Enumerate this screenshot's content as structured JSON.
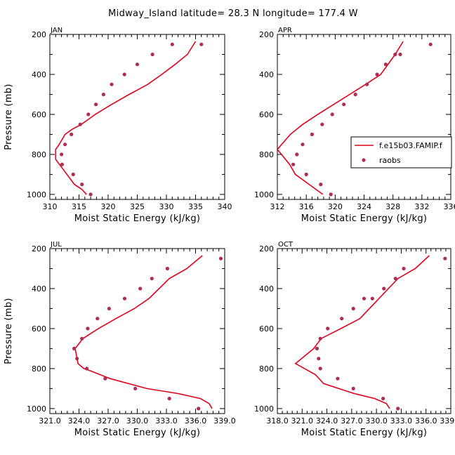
{
  "figure": {
    "title": "Midway_Island   latitude= 28.3 N longitude= 177.4 W",
    "colors": {
      "model": "#e3001b",
      "observations": "#b02c55"
    }
  },
  "chart_data": [
    {
      "type": "line",
      "panel": "JAN",
      "title": "JAN",
      "xlabel": "Moist Static Energy (kJ/kg)",
      "ylabel": "Pressure (mb)",
      "xlim": [
        310,
        340
      ],
      "ylim": [
        1025,
        200
      ],
      "y_inverted": true,
      "xticks": [
        310,
        315,
        320,
        325,
        330,
        335,
        340
      ],
      "xtick_labels": [
        "310",
        "315",
        "320",
        "325",
        "330",
        "335",
        "340"
      ],
      "yticks": [
        200,
        400,
        600,
        800,
        1000
      ],
      "ytick_labels": [
        "200",
        "400",
        "600",
        "800",
        "1000"
      ],
      "series": [
        {
          "name": "f.e15b03.FAMIP.f",
          "kind": "line",
          "x": [
            316.3,
            315.5,
            314.2,
            312.3,
            311.0,
            311.0,
            311.6,
            312.6,
            313.8,
            315.4,
            317.8,
            320.6,
            323.6,
            326.8,
            329.2,
            331.5,
            333.6,
            335.0
          ],
          "y": [
            1000,
            975,
            950,
            875,
            825,
            775,
            750,
            700,
            675,
            650,
            600,
            550,
            500,
            450,
            400,
            350,
            300,
            235
          ]
        },
        {
          "name": "raobs",
          "kind": "scatter",
          "x": [
            317.0,
            315.5,
            314.0,
            312.1,
            312.0,
            312.6,
            313.7,
            315.2,
            316.6,
            317.9,
            319.2,
            320.6,
            322.8,
            325.0,
            327.6,
            331.0,
            336.0
          ],
          "y": [
            1000,
            950,
            900,
            850,
            800,
            750,
            700,
            650,
            600,
            550,
            500,
            450,
            400,
            350,
            300,
            250,
            250
          ]
        }
      ]
    },
    {
      "type": "line",
      "panel": "APR",
      "title": "APR",
      "xlabel": "Moist Static Energy (kJ/kg)",
      "ylabel": "",
      "xlim": [
        312,
        336
      ],
      "ylim": [
        1025,
        200
      ],
      "y_inverted": true,
      "xticks": [
        312,
        316,
        320,
        324,
        328,
        332,
        336
      ],
      "xtick_labels": [
        "312",
        "316",
        "320",
        "324",
        "328",
        "332",
        "336"
      ],
      "yticks": [
        200,
        400,
        600,
        800,
        1000
      ],
      "ytick_labels": [
        "200",
        "400",
        "600",
        "800",
        "1000"
      ],
      "series": [
        {
          "name": "f.e15b03.FAMIP.f",
          "kind": "line",
          "x": [
            318.3,
            316.4,
            314.5,
            313.7,
            312.0,
            313.8,
            315.5,
            317.6,
            319.8,
            322.0,
            324.2,
            326.3,
            328.3,
            329.4
          ],
          "y": [
            1000,
            950,
            900,
            850,
            775,
            700,
            650,
            600,
            550,
            500,
            450,
            400,
            300,
            235
          ]
        },
        {
          "name": "raobs",
          "kind": "scatter",
          "x": [
            319.4,
            318.0,
            316.0,
            314.2,
            314.7,
            315.5,
            316.8,
            318.2,
            319.6,
            321.2,
            322.8,
            324.4,
            325.8,
            327.0,
            328.3,
            329.0,
            333.2
          ],
          "y": [
            1000,
            950,
            900,
            850,
            800,
            750,
            700,
            650,
            600,
            550,
            500,
            450,
            400,
            350,
            300,
            300,
            250
          ]
        }
      ],
      "legend": {
        "location": "right",
        "entries": [
          "f.e15b03.FAMIP.f",
          "raobs"
        ]
      }
    },
    {
      "type": "line",
      "panel": "JUL",
      "title": "JUL",
      "xlabel": "Moist Static Energy (kJ/kg)",
      "ylabel": "Pressure (mb)",
      "xlim": [
        321,
        339
      ],
      "ylim": [
        1025,
        200
      ],
      "y_inverted": true,
      "xticks": [
        321,
        324,
        327,
        330,
        333,
        336,
        339
      ],
      "xtick_labels": [
        "321.0",
        "324.0",
        "327.0",
        "330.0",
        "333.0",
        "336.0",
        "339.0"
      ],
      "yticks": [
        200,
        400,
        600,
        800,
        1000
      ],
      "ytick_labels": [
        "200",
        "400",
        "600",
        "800",
        "1000"
      ],
      "series": [
        {
          "name": "f.e15b03.FAMIP.f",
          "kind": "line",
          "x": [
            337.7,
            337.4,
            336.5,
            334.2,
            331.0,
            327.2,
            325.2,
            324.5,
            323.9,
            323.6,
            324.4,
            326.0,
            327.8,
            329.7,
            331.2,
            333.3,
            335.1,
            336.7
          ],
          "y": [
            1000,
            975,
            950,
            925,
            900,
            850,
            812,
            800,
            775,
            700,
            650,
            600,
            550,
            500,
            450,
            350,
            300,
            235
          ]
        },
        {
          "name": "raobs",
          "kind": "scatter",
          "x": [
            336.3,
            333.3,
            329.8,
            326.7,
            324.8,
            323.8,
            323.5,
            324.3,
            324.9,
            325.9,
            327.1,
            328.7,
            330.3,
            331.5,
            333.1,
            338.6
          ],
          "y": [
            1000,
            950,
            900,
            850,
            800,
            750,
            700,
            650,
            600,
            550,
            500,
            450,
            400,
            350,
            300,
            250
          ]
        }
      ]
    },
    {
      "type": "line",
      "panel": "OCT",
      "title": "OCT",
      "xlabel": "Moist Static Energy (kJ/kg)",
      "ylabel": "",
      "xlim": [
        318.0,
        339.0
      ],
      "ylim": [
        1025,
        200
      ],
      "y_inverted": true,
      "xticks": [
        318.0,
        321.0,
        324.0,
        327.0,
        330.0,
        333.0,
        336.0,
        339.0
      ],
      "xtick_labels": [
        "318.0",
        "321.0",
        "324.0",
        "327.0",
        "330.0",
        "333.0",
        "336.0",
        "339.0"
      ],
      "yticks": [
        200,
        400,
        600,
        800,
        1000
      ],
      "ytick_labels": [
        "200",
        "400",
        "600",
        "800",
        "1000"
      ],
      "series": [
        {
          "name": "f.e15b03.FAMIP.f",
          "kind": "line",
          "x": [
            331.6,
            331.2,
            329.8,
            327.3,
            323.6,
            322.6,
            320.2,
            322.4,
            323.3,
            325.7,
            328.0,
            330.3,
            332.6,
            334.7,
            336.4
          ],
          "y": [
            1000,
            975,
            950,
            925,
            875,
            830,
            775,
            700,
            650,
            600,
            550,
            450,
            350,
            300,
            235
          ]
        },
        {
          "name": "raobs",
          "kind": "scatter",
          "x": [
            332.6,
            330.8,
            327.2,
            325.3,
            323.2,
            323.0,
            322.8,
            323.2,
            324.1,
            325.8,
            327.2,
            328.5,
            329.5,
            330.9,
            332.3,
            333.3,
            338.3
          ],
          "y": [
            1000,
            950,
            900,
            850,
            800,
            750,
            700,
            650,
            600,
            550,
            500,
            450,
            450,
            400,
            350,
            300,
            250
          ]
        }
      ]
    }
  ]
}
